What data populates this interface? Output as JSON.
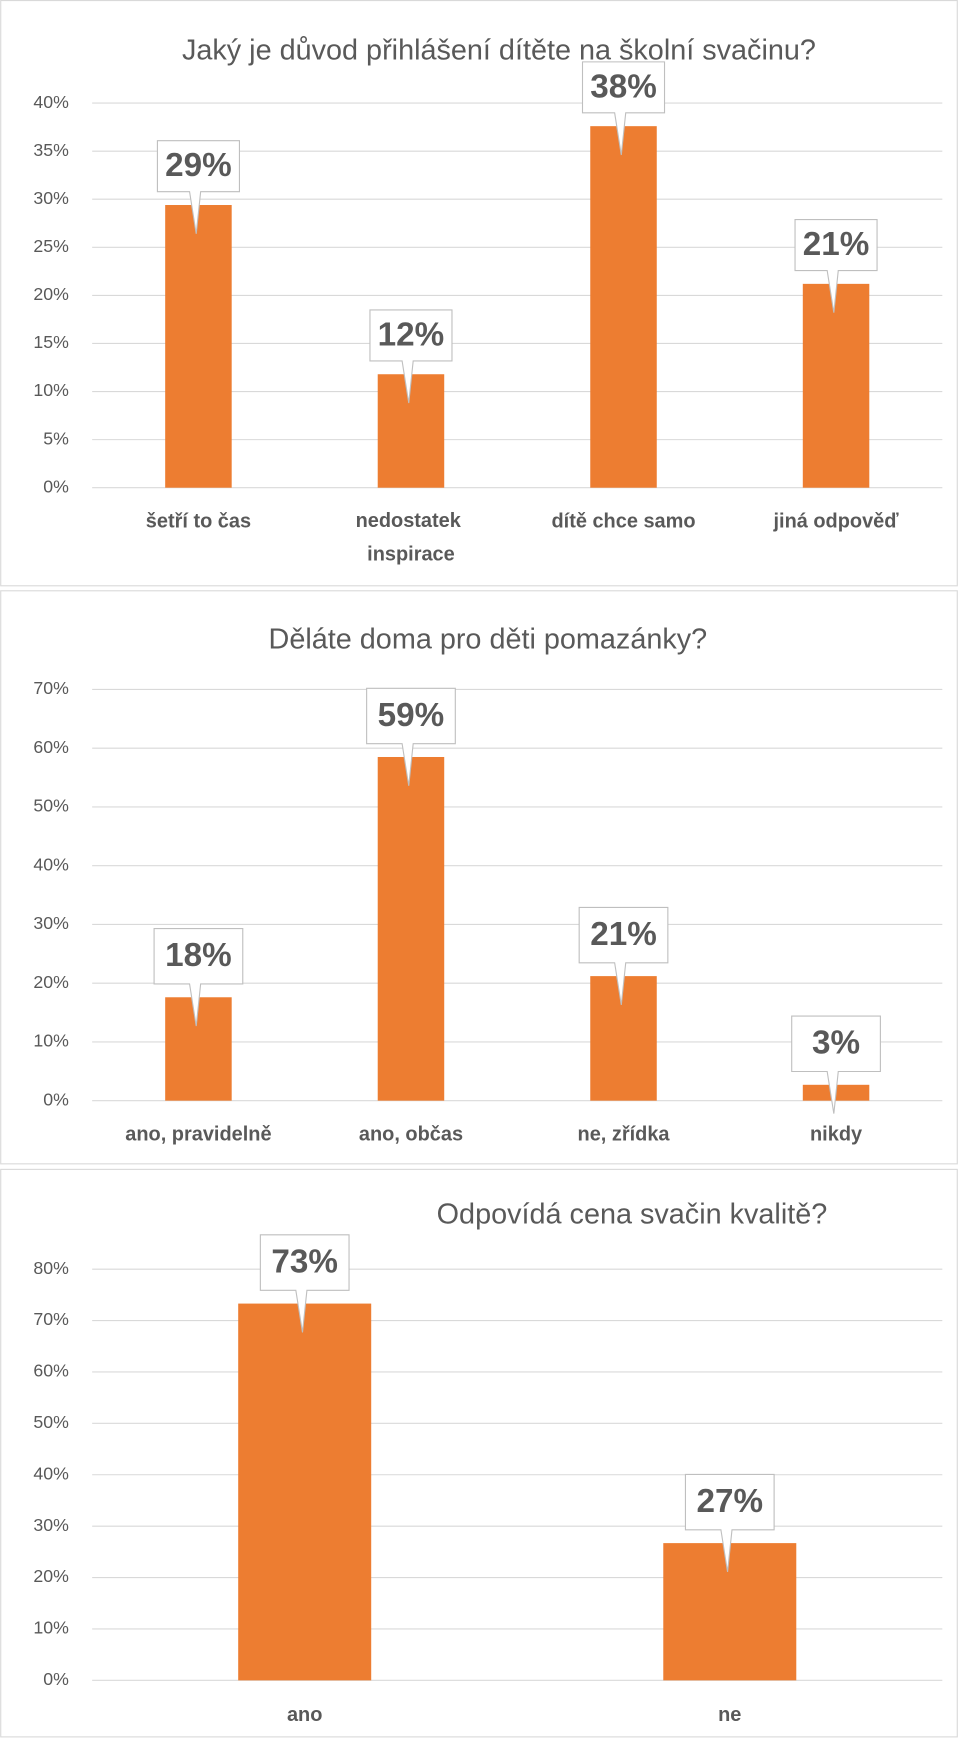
{
  "chart_data": [
    {
      "type": "bar",
      "title": "Jaký je důvod přihlášení dítěte na školní svačinu?",
      "categories": [
        "šetří to čas",
        "nedostatek inspirace",
        "dítě chce samo",
        "jiná odpověď"
      ],
      "values": [
        29.4,
        11.8,
        37.6,
        21.2
      ],
      "value_labels": [
        "29%",
        "12%",
        "38%",
        "21%"
      ],
      "color": "#ed7d31",
      "ylim": [
        0,
        40
      ],
      "yticks": [
        {
          "value": 0,
          "label": "0%"
        },
        {
          "value": 5,
          "label": "5%"
        },
        {
          "value": 10,
          "label": "10%"
        },
        {
          "value": 15,
          "label": "15%"
        },
        {
          "value": 20,
          "label": "20%"
        },
        {
          "value": 25,
          "label": "25%"
        },
        {
          "value": 30,
          "label": "30%"
        },
        {
          "value": 35,
          "label": "35%"
        },
        {
          "value": 40,
          "label": "40%"
        }
      ],
      "grid": true
    },
    {
      "type": "bar",
      "title": "Děláte doma pro děti pomazánky?",
      "categories": [
        "ano, pravidelně",
        "ano, občas",
        "ne, zřídka",
        "nikdy"
      ],
      "values": [
        17.6,
        58.5,
        21.2,
        2.7
      ],
      "value_labels": [
        "18%",
        "59%",
        "21%",
        "3%"
      ],
      "color": "#ed7d31",
      "ylim": [
        0,
        70
      ],
      "yticks": [
        {
          "value": 0,
          "label": "0%"
        },
        {
          "value": 10,
          "label": "10%"
        },
        {
          "value": 20,
          "label": "20%"
        },
        {
          "value": 30,
          "label": "30%"
        },
        {
          "value": 40,
          "label": "40%"
        },
        {
          "value": 50,
          "label": "50%"
        },
        {
          "value": 60,
          "label": "60%"
        },
        {
          "value": 70,
          "label": "70%"
        }
      ],
      "grid": true
    },
    {
      "type": "bar",
      "title": "Odpovídá cena svačin kvalitě?",
      "categories": [
        "ano",
        "ne"
      ],
      "values": [
        73.3,
        26.7
      ],
      "value_labels": [
        "73%",
        "27%"
      ],
      "color": "#ed7d31",
      "ylim": [
        0,
        80
      ],
      "yticks": [
        {
          "value": 0,
          "label": "0%"
        },
        {
          "value": 10,
          "label": "10%"
        },
        {
          "value": 20,
          "label": "20%"
        },
        {
          "value": 30,
          "label": "30%"
        },
        {
          "value": 40,
          "label": "40%"
        },
        {
          "value": 50,
          "label": "50%"
        },
        {
          "value": 60,
          "label": "60%"
        },
        {
          "value": 70,
          "label": "70%"
        },
        {
          "value": 80,
          "label": "80%"
        }
      ],
      "grid": true
    }
  ]
}
